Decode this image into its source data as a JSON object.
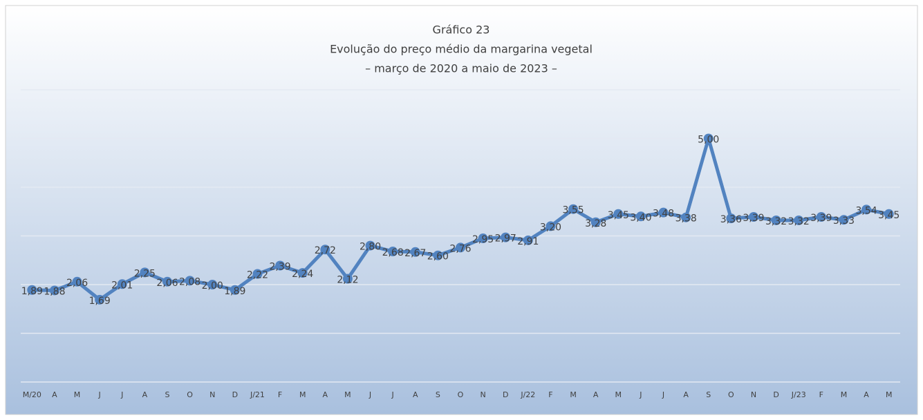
{
  "chart_data": {
    "type": "line",
    "title": "Gráfico 23",
    "subtitle": [
      "Evolução do preço médio da margarina vegetal",
      "– março de 2020 a maio de 2023 –"
    ],
    "categories": [
      "M/20",
      "A",
      "M",
      "J",
      "J",
      "A",
      "S",
      "O",
      "N",
      "D",
      "J/21",
      "F",
      "M",
      "A",
      "M",
      "J",
      "J",
      "A",
      "S",
      "O",
      "N",
      "D",
      "J/22",
      "F",
      "M",
      "A",
      "M",
      "J",
      "J",
      "A",
      "S",
      "O",
      "N",
      "D",
      "J/23",
      "F",
      "M",
      "A",
      "M"
    ],
    "series": [
      {
        "color": "#5283c0",
        "values": [
          1.89,
          1.88,
          2.06,
          1.69,
          2.01,
          2.25,
          2.06,
          2.08,
          2.0,
          1.89,
          2.22,
          2.39,
          2.24,
          2.72,
          2.12,
          2.8,
          2.68,
          2.67,
          2.6,
          2.76,
          2.95,
          2.97,
          2.91,
          3.2,
          3.55,
          3.28,
          3.45,
          3.4,
          3.48,
          3.38,
          5.0,
          3.36,
          3.39,
          3.32,
          3.32,
          3.39,
          3.33,
          3.54,
          3.45
        ],
        "value_labels": [
          "1,89",
          "1,88",
          "2,06",
          "1,69",
          "2,01",
          "2,25",
          "2,06",
          "2,08",
          "2,00",
          "1,89",
          "2,22",
          "2,39",
          "2,24",
          "2,72",
          "2,12",
          "2,80",
          "2,68",
          "2,67",
          "2,60",
          "2,76",
          "2,95",
          "2,97",
          "2,91",
          "3,20",
          "3,55",
          "3,28",
          "3,45",
          "3,40",
          "3,48",
          "3,38",
          "5,00",
          "3,36",
          "3,39",
          "3,32",
          "3,32",
          "3,39",
          "3,33",
          "3,54",
          "3,45"
        ]
      }
    ],
    "ylim": [
      0,
      6
    ],
    "yticks": [
      0,
      1,
      2,
      3,
      4,
      5,
      6
    ],
    "grid": true
  }
}
